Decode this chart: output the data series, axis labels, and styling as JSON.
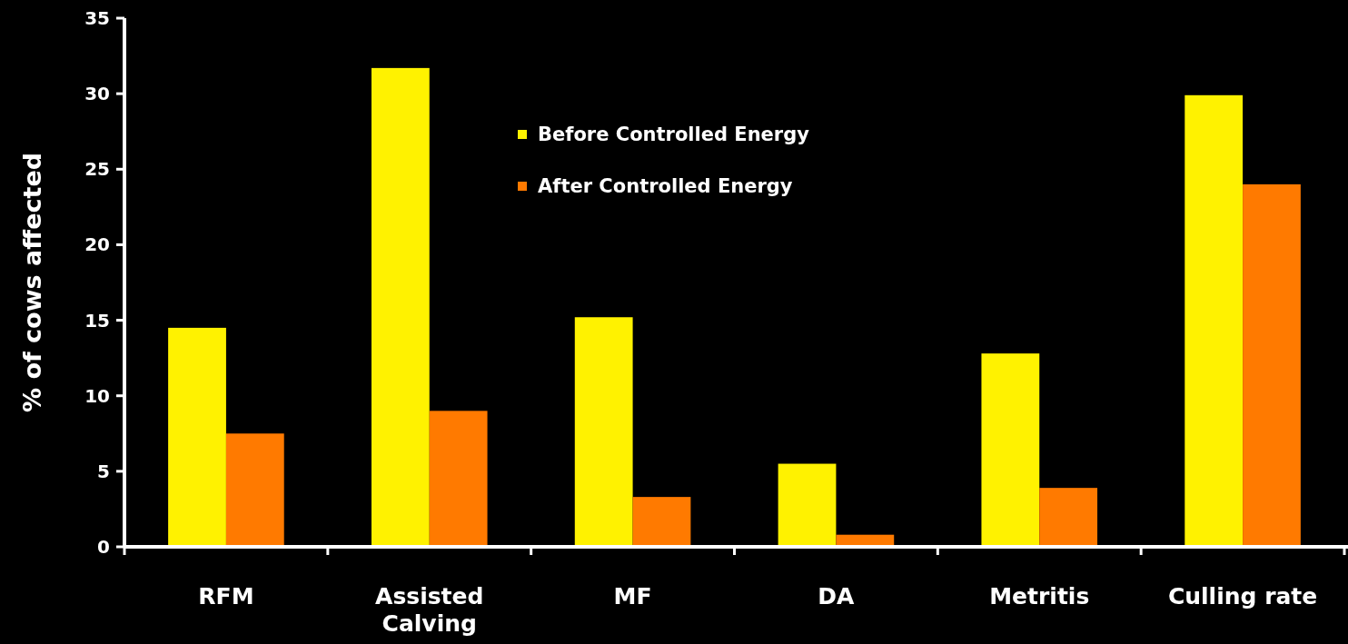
{
  "chart_data": {
    "type": "bar",
    "ylabel": "% of cows affected",
    "categories": [
      "RFM",
      "Assisted Calving",
      "MF",
      "DA",
      "Metritis",
      "Culling rate"
    ],
    "series": [
      {
        "name": "Before Controlled Energy",
        "color": "#fff200",
        "values": [
          14.5,
          31.7,
          15.2,
          5.5,
          12.8,
          29.9
        ]
      },
      {
        "name": "After Controlled Energy",
        "color": "#ff7a00",
        "values": [
          7.5,
          9.0,
          3.3,
          0.8,
          3.9,
          24.0
        ]
      }
    ],
    "ylim": [
      0,
      35
    ],
    "yticks": [
      0,
      5,
      10,
      15,
      20,
      25,
      30,
      35
    ],
    "legend": "top",
    "grid": false
  }
}
